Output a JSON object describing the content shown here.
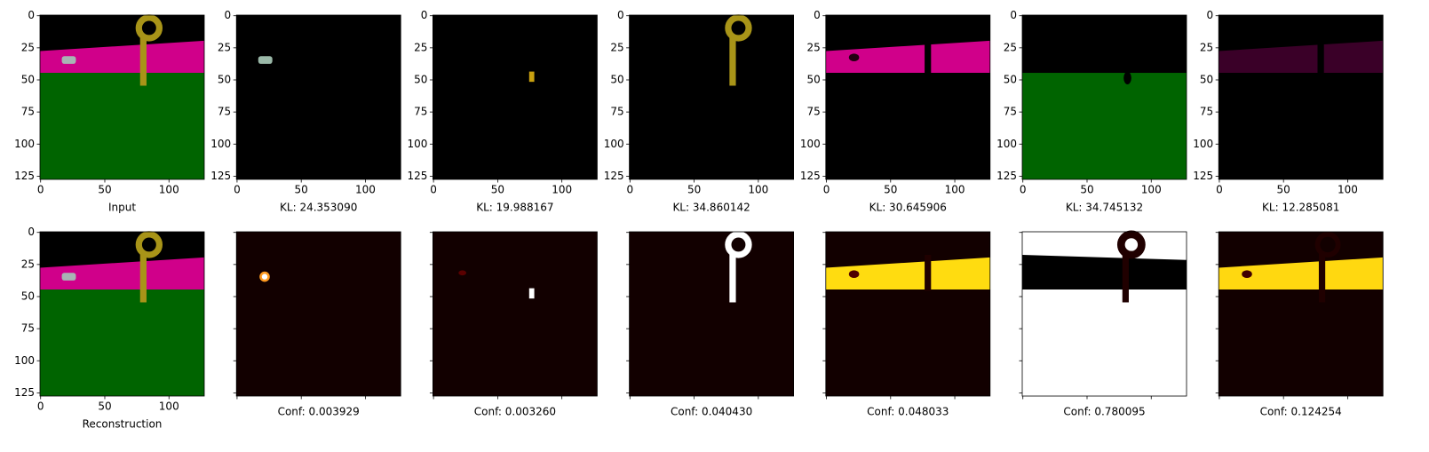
{
  "chart_data": [
    {
      "type": "image",
      "xlabel": "Input",
      "xlim": [
        -0.5,
        127.5
      ],
      "ylim": [
        127.5,
        -0.5
      ],
      "xticks": [
        0,
        50,
        100
      ],
      "yticks": [
        0,
        25,
        50,
        75,
        100,
        125
      ],
      "tick_labels": true
    },
    {
      "type": "image",
      "xlabel": "KL: 24.353090",
      "xlim": [
        -0.5,
        127.5
      ],
      "ylim": [
        127.5,
        -0.5
      ],
      "xticks": [
        0,
        50,
        100
      ],
      "yticks": [
        0,
        25,
        50,
        75,
        100,
        125
      ],
      "tick_labels": true
    },
    {
      "type": "image",
      "xlabel": "KL: 19.988167",
      "xlim": [
        -0.5,
        127.5
      ],
      "ylim": [
        127.5,
        -0.5
      ],
      "xticks": [
        0,
        50,
        100
      ],
      "yticks": [
        0,
        25,
        50,
        75,
        100,
        125
      ],
      "tick_labels": true
    },
    {
      "type": "image",
      "xlabel": "KL: 34.860142",
      "xlim": [
        -0.5,
        127.5
      ],
      "ylim": [
        127.5,
        -0.5
      ],
      "xticks": [
        0,
        50,
        100
      ],
      "yticks": [
        0,
        25,
        50,
        75,
        100,
        125
      ],
      "tick_labels": true
    },
    {
      "type": "image",
      "xlabel": "KL: 30.645906",
      "xlim": [
        -0.5,
        127.5
      ],
      "ylim": [
        127.5,
        -0.5
      ],
      "xticks": [
        0,
        50,
        100
      ],
      "yticks": [
        0,
        25,
        50,
        75,
        100,
        125
      ],
      "tick_labels": true
    },
    {
      "type": "image",
      "xlabel": "KL: 34.745132",
      "xlim": [
        -0.5,
        127.5
      ],
      "ylim": [
        127.5,
        -0.5
      ],
      "xticks": [
        0,
        50,
        100
      ],
      "yticks": [
        0,
        25,
        50,
        75,
        100,
        125
      ],
      "tick_labels": true
    },
    {
      "type": "image",
      "xlabel": "KL: 12.285081",
      "xlim": [
        -0.5,
        127.5
      ],
      "ylim": [
        127.5,
        -0.5
      ],
      "xticks": [
        0,
        50,
        100
      ],
      "yticks": [
        0,
        25,
        50,
        75,
        100,
        125
      ],
      "tick_labels": true
    },
    {
      "type": "image",
      "xlabel": "Reconstruction",
      "xlim": [
        -0.5,
        127.5
      ],
      "ylim": [
        127.5,
        -0.5
      ],
      "xticks": [
        0,
        50,
        100
      ],
      "yticks": [
        0,
        25,
        50,
        75,
        100,
        125
      ],
      "tick_labels": true
    },
    {
      "type": "image",
      "xlabel": "Conf: 0.003929",
      "xlim": [
        -0.5,
        127.5
      ],
      "ylim": [
        127.5,
        -0.5
      ],
      "xticks": [
        0,
        50,
        100
      ],
      "yticks": [
        0,
        25,
        50,
        75,
        100,
        125
      ],
      "tick_labels": false
    },
    {
      "type": "image",
      "xlabel": "Conf: 0.003260",
      "xlim": [
        -0.5,
        127.5
      ],
      "ylim": [
        127.5,
        -0.5
      ],
      "xticks": [
        0,
        50,
        100
      ],
      "yticks": [
        0,
        25,
        50,
        75,
        100,
        125
      ],
      "tick_labels": false
    },
    {
      "type": "image",
      "xlabel": "Conf: 0.040430",
      "xlim": [
        -0.5,
        127.5
      ],
      "ylim": [
        127.5,
        -0.5
      ],
      "xticks": [
        0,
        50,
        100
      ],
      "yticks": [
        0,
        25,
        50,
        75,
        100,
        125
      ],
      "tick_labels": false
    },
    {
      "type": "image",
      "xlabel": "Conf: 0.048033",
      "xlim": [
        -0.5,
        127.5
      ],
      "ylim": [
        127.5,
        -0.5
      ],
      "xticks": [
        0,
        50,
        100
      ],
      "yticks": [
        0,
        25,
        50,
        75,
        100,
        125
      ],
      "tick_labels": false
    },
    {
      "type": "image",
      "xlabel": "Conf: 0.780095",
      "xlim": [
        -0.5,
        127.5
      ],
      "ylim": [
        127.5,
        -0.5
      ],
      "xticks": [
        0,
        50,
        100
      ],
      "yticks": [
        0,
        25,
        50,
        75,
        100,
        125
      ],
      "tick_labels": false
    },
    {
      "type": "image",
      "xlabel": "Conf: 0.124254",
      "xlim": [
        -0.5,
        127.5
      ],
      "ylim": [
        127.5,
        -0.5
      ],
      "xticks": [
        0,
        50,
        100
      ],
      "yticks": [
        0,
        25,
        50,
        75,
        100,
        125
      ],
      "tick_labels": false
    }
  ]
}
